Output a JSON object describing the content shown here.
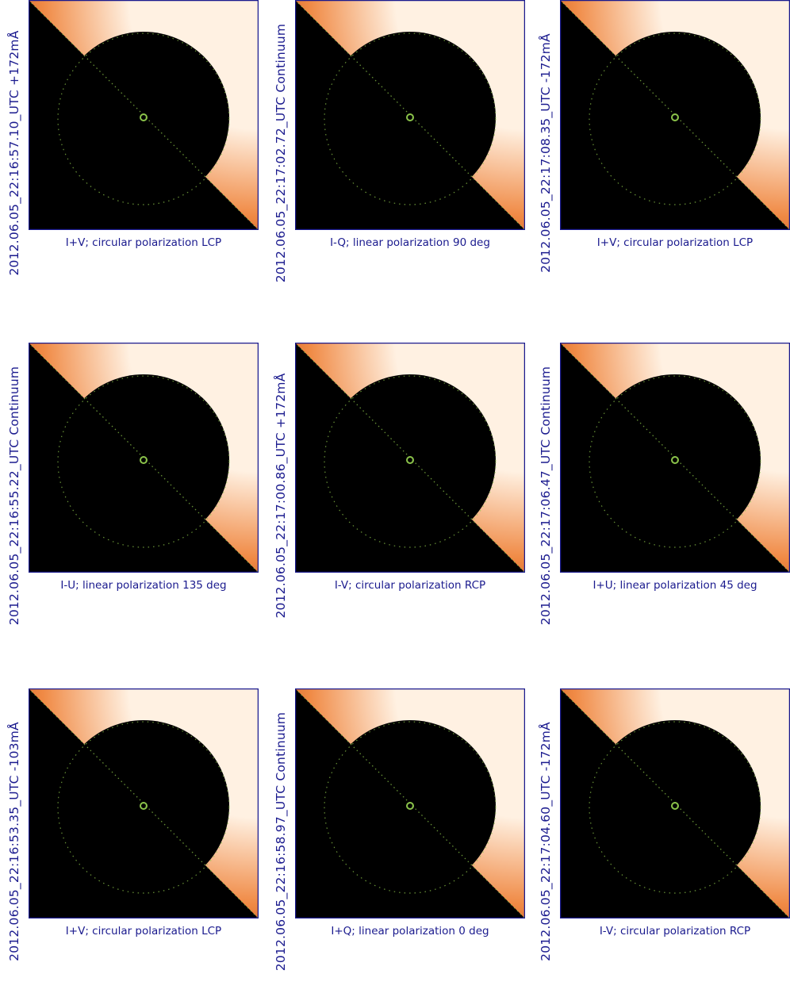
{
  "panels": [
    {
      "time_label": "2012.06.05_22:16:57.10_UTC  +172mÅ",
      "caption": "I+V; circular polarization LCP"
    },
    {
      "time_label": "2012.06.05_22:17:02.72_UTC Continuum",
      "caption": "I-Q; linear polarization  90 deg"
    },
    {
      "time_label": "2012.06.05_22:17:08.35_UTC  -172mÅ",
      "caption": "I+V; circular polarization LCP"
    },
    {
      "time_label": "2012.06.05_22:16:55.22_UTC Continuum",
      "caption": "I-U; linear polarization 135 deg"
    },
    {
      "time_label": "2012.06.05_22:17:00.86_UTC  +172mÅ",
      "caption": "I-V; circular polarization RCP"
    },
    {
      "time_label": "2012.06.05_22:17:06.47_UTC Continuum",
      "caption": "I+U; linear polarization  45 deg"
    },
    {
      "time_label": "2012.06.05_22:16:53.35_UTC  -103mÅ",
      "caption": "I+V; circular polarization LCP"
    },
    {
      "time_label": "2012.06.05_22:16:58.97_UTC Continuum",
      "caption": "I+Q; linear polarization   0 deg"
    },
    {
      "time_label": "2012.06.05_22:17:04.60_UTC  -172mÅ",
      "caption": "I-V; circular polarization RCP"
    }
  ],
  "colors": {
    "label": "#1a1a8e",
    "frame": "#1a1a8e",
    "sun_dark": "#b5400c",
    "sun_mid": "#f08a45",
    "sun_light": "#fff1e2",
    "disk": "#000000",
    "overlay": "#8bc34a"
  }
}
